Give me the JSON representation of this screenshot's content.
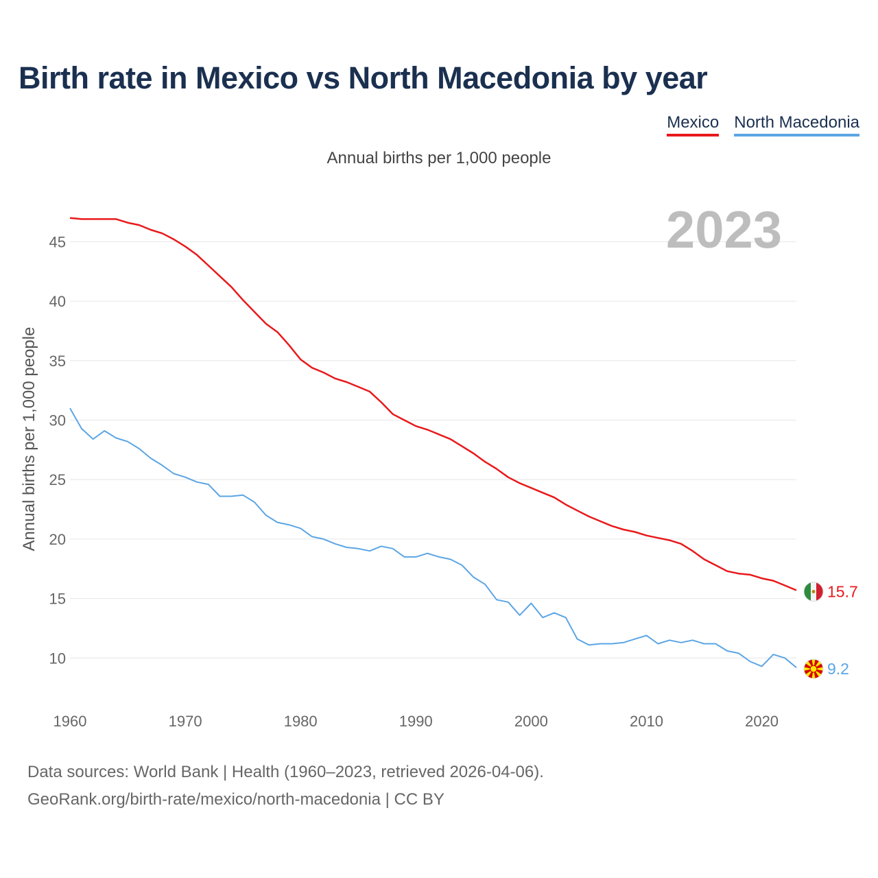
{
  "colors": {
    "mexico": "#e8191b",
    "north_macedonia": "#5ba5e4",
    "title": "#1b3050",
    "year_watermark": "#bdbdbd"
  },
  "legend": {
    "mexico": "Mexico",
    "north_macedonia": "North Macedonia"
  },
  "chart_data": {
    "type": "line",
    "title": "Birth rate in Mexico vs North Macedonia by year",
    "subtitle": "Annual births per 1,000 people",
    "xlabel": "",
    "ylabel": "Annual births per 1,000 people",
    "xlim": [
      1960,
      2023
    ],
    "ylim": [
      6.5,
      49
    ],
    "x_ticks": [
      1960,
      1970,
      1980,
      1990,
      2000,
      2010,
      2020
    ],
    "y_ticks": [
      10,
      15,
      20,
      25,
      30,
      35,
      40,
      45
    ],
    "grid": true,
    "year_label": "2023",
    "x": [
      1960,
      1961,
      1962,
      1963,
      1964,
      1965,
      1966,
      1967,
      1968,
      1969,
      1970,
      1971,
      1972,
      1973,
      1974,
      1975,
      1976,
      1977,
      1978,
      1979,
      1980,
      1981,
      1982,
      1983,
      1984,
      1985,
      1986,
      1987,
      1988,
      1989,
      1990,
      1991,
      1992,
      1993,
      1994,
      1995,
      1996,
      1997,
      1998,
      1999,
      2000,
      2001,
      2002,
      2003,
      2004,
      2005,
      2006,
      2007,
      2008,
      2009,
      2010,
      2011,
      2012,
      2013,
      2014,
      2015,
      2016,
      2017,
      2018,
      2019,
      2020,
      2021,
      2022,
      2023
    ],
    "series": [
      {
        "name": "Mexico",
        "color": "#e8191b",
        "end_label": "15.7",
        "flag": "mexico-flag",
        "values": [
          47.0,
          46.9,
          46.9,
          46.9,
          46.9,
          46.6,
          46.4,
          46.0,
          45.7,
          45.2,
          44.6,
          43.9,
          43.0,
          42.1,
          41.2,
          40.1,
          39.1,
          38.1,
          37.4,
          36.3,
          35.1,
          34.4,
          34.0,
          33.5,
          33.2,
          32.8,
          32.4,
          31.5,
          30.5,
          30.0,
          29.5,
          29.2,
          28.8,
          28.4,
          27.8,
          27.2,
          26.5,
          25.9,
          25.2,
          24.7,
          24.3,
          23.9,
          23.5,
          22.9,
          22.4,
          21.9,
          21.5,
          21.1,
          20.8,
          20.6,
          20.3,
          20.1,
          19.9,
          19.6,
          19.0,
          18.3,
          17.8,
          17.3,
          17.1,
          17.0,
          16.7,
          16.5,
          16.1,
          15.7
        ]
      },
      {
        "name": "North Macedonia",
        "color": "#5ba5e4",
        "end_label": "9.2",
        "flag": "north-macedonia-flag",
        "values": [
          31.0,
          29.3,
          28.4,
          29.1,
          28.5,
          28.2,
          27.6,
          26.8,
          26.2,
          25.5,
          25.2,
          24.8,
          24.6,
          23.6,
          23.6,
          23.7,
          23.1,
          22.0,
          21.4,
          21.2,
          20.9,
          20.2,
          20.0,
          19.6,
          19.3,
          19.2,
          19.0,
          19.4,
          19.2,
          18.5,
          18.5,
          18.8,
          18.5,
          18.3,
          17.8,
          16.8,
          16.2,
          14.9,
          14.7,
          13.6,
          14.6,
          13.4,
          13.8,
          13.4,
          11.6,
          11.1,
          11.2,
          11.2,
          11.3,
          11.6,
          11.9,
          11.2,
          11.5,
          11.3,
          11.5,
          11.2,
          11.2,
          10.6,
          10.4,
          9.7,
          9.3,
          10.3,
          10.0,
          9.2
        ]
      }
    ]
  },
  "source": {
    "line1": "Data sources: World Bank | Health (1960–2023, retrieved 2026-04-06).",
    "line2": "GeoRank.org/birth-rate/mexico/north-macedonia | CC BY"
  }
}
